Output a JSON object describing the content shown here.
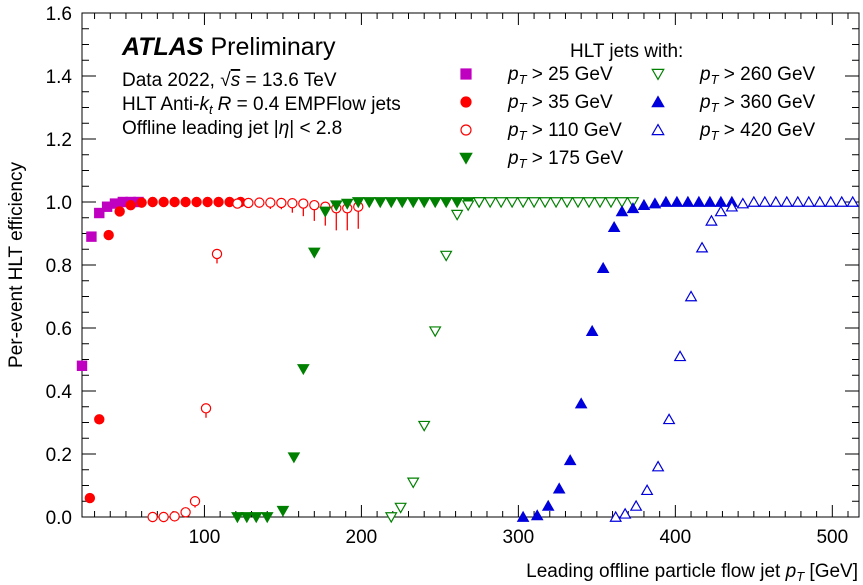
{
  "chart_data": {
    "type": "scatter",
    "xlabel_main": "Leading offline particle flow jet ",
    "xlabel_var": "p",
    "xlabel_sub": "T",
    "xlabel_unit": " [GeV]",
    "ylabel": "Per-event HLT efficiency",
    "xlim": [
      22,
      517
    ],
    "ylim": [
      0,
      1.6
    ],
    "xticks": [
      100,
      200,
      300,
      400,
      500
    ],
    "yticks": [
      0.0,
      0.2,
      0.4,
      0.6,
      0.8,
      1.0,
      1.2,
      1.4,
      1.6
    ],
    "ytick_labels": [
      "0.0",
      "0.2",
      "0.4",
      "0.6",
      "0.8",
      "1.0",
      "1.2",
      "1.4",
      "1.6"
    ],
    "annotations": {
      "atlas": "ATLAS",
      "preliminary": "Preliminary",
      "data_line_a": "Data 2022, ",
      "data_line_b": "s",
      "data_line_c": " = 13.6 TeV",
      "hlt_line_a": "HLT Anti-",
      "hlt_line_k": "k",
      "hlt_line_t": "t",
      "hlt_line_r": "R",
      "hlt_line_b": " = 0.4 EMPFlow jets",
      "offline_line_a": "Offline leading jet |",
      "offline_line_eta": "η",
      "offline_line_b": "| < 2.8",
      "legend_title": "HLT jets with:"
    },
    "legend_placement": "top-right",
    "series": [
      {
        "name": "pT > 25 GeV",
        "threshold": "25",
        "marker": "square",
        "filled": true,
        "color": "#c000c0",
        "x": [
          22,
          28,
          33,
          38,
          43,
          48,
          53,
          58
        ],
        "y": [
          0.48,
          0.89,
          0.965,
          0.985,
          0.995,
          1.0,
          1.0,
          1.0
        ]
      },
      {
        "name": "pT > 35 GeV",
        "threshold": "35",
        "marker": "circle",
        "filled": true,
        "color": "#ff0000",
        "x": [
          27,
          33,
          39,
          46,
          53,
          60,
          67,
          74,
          81,
          88,
          95,
          102,
          109,
          116,
          123
        ],
        "y": [
          0.06,
          0.31,
          0.895,
          0.97,
          0.99,
          0.998,
          1.0,
          1.0,
          1.0,
          1.0,
          1.0,
          1.0,
          1.0,
          1.0,
          1.0
        ]
      },
      {
        "name": "pT > 110 GeV",
        "threshold": "110",
        "marker": "circle",
        "filled": false,
        "color": "#ff0000",
        "x": [
          67,
          74,
          81,
          88,
          94,
          101,
          108,
          121,
          128,
          135,
          142,
          149,
          156,
          163,
          170,
          177,
          184,
          191,
          198
        ],
        "y": [
          0.0,
          0.0,
          0.002,
          0.015,
          0.05,
          0.345,
          0.835,
          0.995,
          0.997,
          0.998,
          0.998,
          0.997,
          0.996,
          0.995,
          0.99,
          0.985,
          0.98,
          0.98,
          0.985
        ],
        "err_low": [
          0,
          0,
          0,
          0.012,
          0.02,
          0.03,
          0.03,
          0.01,
          0.01,
          0.01,
          0.02,
          0.02,
          0.03,
          0.04,
          0.05,
          0.06,
          0.07,
          0.07,
          0.07
        ]
      },
      {
        "name": "pT > 175 GeV",
        "threshold": "175",
        "marker": "triangle-down",
        "filled": true,
        "color": "#008000",
        "x": [
          121,
          127,
          133,
          140,
          150,
          157,
          163,
          170,
          177,
          184,
          191,
          198,
          205,
          212,
          219,
          226,
          233,
          240,
          247,
          254,
          261,
          268,
          275
        ],
        "y": [
          0.0,
          0.0,
          0.0,
          0.0,
          0.02,
          0.19,
          0.47,
          0.84,
          0.97,
          0.99,
          0.995,
          1.0,
          1.0,
          1.0,
          1.0,
          1.0,
          1.0,
          1.0,
          1.0,
          1.0,
          1.0,
          1.0,
          1.0
        ]
      },
      {
        "name": "pT > 260 GeV",
        "threshold": "260",
        "marker": "triangle-down",
        "filled": false,
        "color": "#008000",
        "x": [
          219,
          225,
          233,
          240,
          247,
          254,
          261,
          268,
          275,
          282,
          289,
          296,
          303,
          310,
          317,
          324,
          331,
          338,
          345,
          352,
          359,
          366,
          373
        ],
        "y": [
          0.0,
          0.03,
          0.11,
          0.29,
          0.59,
          0.83,
          0.96,
          0.99,
          1.0,
          1.0,
          1.0,
          1.0,
          1.0,
          1.0,
          1.0,
          1.0,
          1.0,
          1.0,
          1.0,
          1.0,
          1.0,
          1.0,
          1.0
        ]
      },
      {
        "name": "pT > 360 GeV",
        "threshold": "360",
        "marker": "triangle-up",
        "filled": true,
        "color": "#0000dd",
        "x": [
          303,
          312,
          319,
          326,
          333,
          340,
          347,
          354,
          361,
          366,
          373,
          380,
          387,
          394,
          401,
          408,
          415,
          422,
          429,
          436
        ],
        "y": [
          0.0,
          0.005,
          0.035,
          0.09,
          0.18,
          0.36,
          0.59,
          0.79,
          0.92,
          0.97,
          0.98,
          0.99,
          0.995,
          1.0,
          1.0,
          1.0,
          1.0,
          1.0,
          1.0,
          1.0
        ]
      },
      {
        "name": "pT > 420 GeV",
        "threshold": "420",
        "marker": "triangle-up",
        "filled": false,
        "color": "#0000dd",
        "x": [
          362,
          368,
          375,
          382,
          389,
          396,
          403,
          410,
          417,
          423,
          429,
          436,
          443,
          450,
          457,
          464,
          471,
          478,
          485,
          492,
          499,
          506,
          513
        ],
        "y": [
          0.0,
          0.01,
          0.035,
          0.085,
          0.16,
          0.31,
          0.51,
          0.7,
          0.855,
          0.94,
          0.97,
          0.985,
          0.995,
          1.0,
          1.0,
          1.0,
          1.0,
          1.0,
          1.0,
          1.0,
          1.0,
          1.0,
          1.0
        ]
      }
    ]
  }
}
